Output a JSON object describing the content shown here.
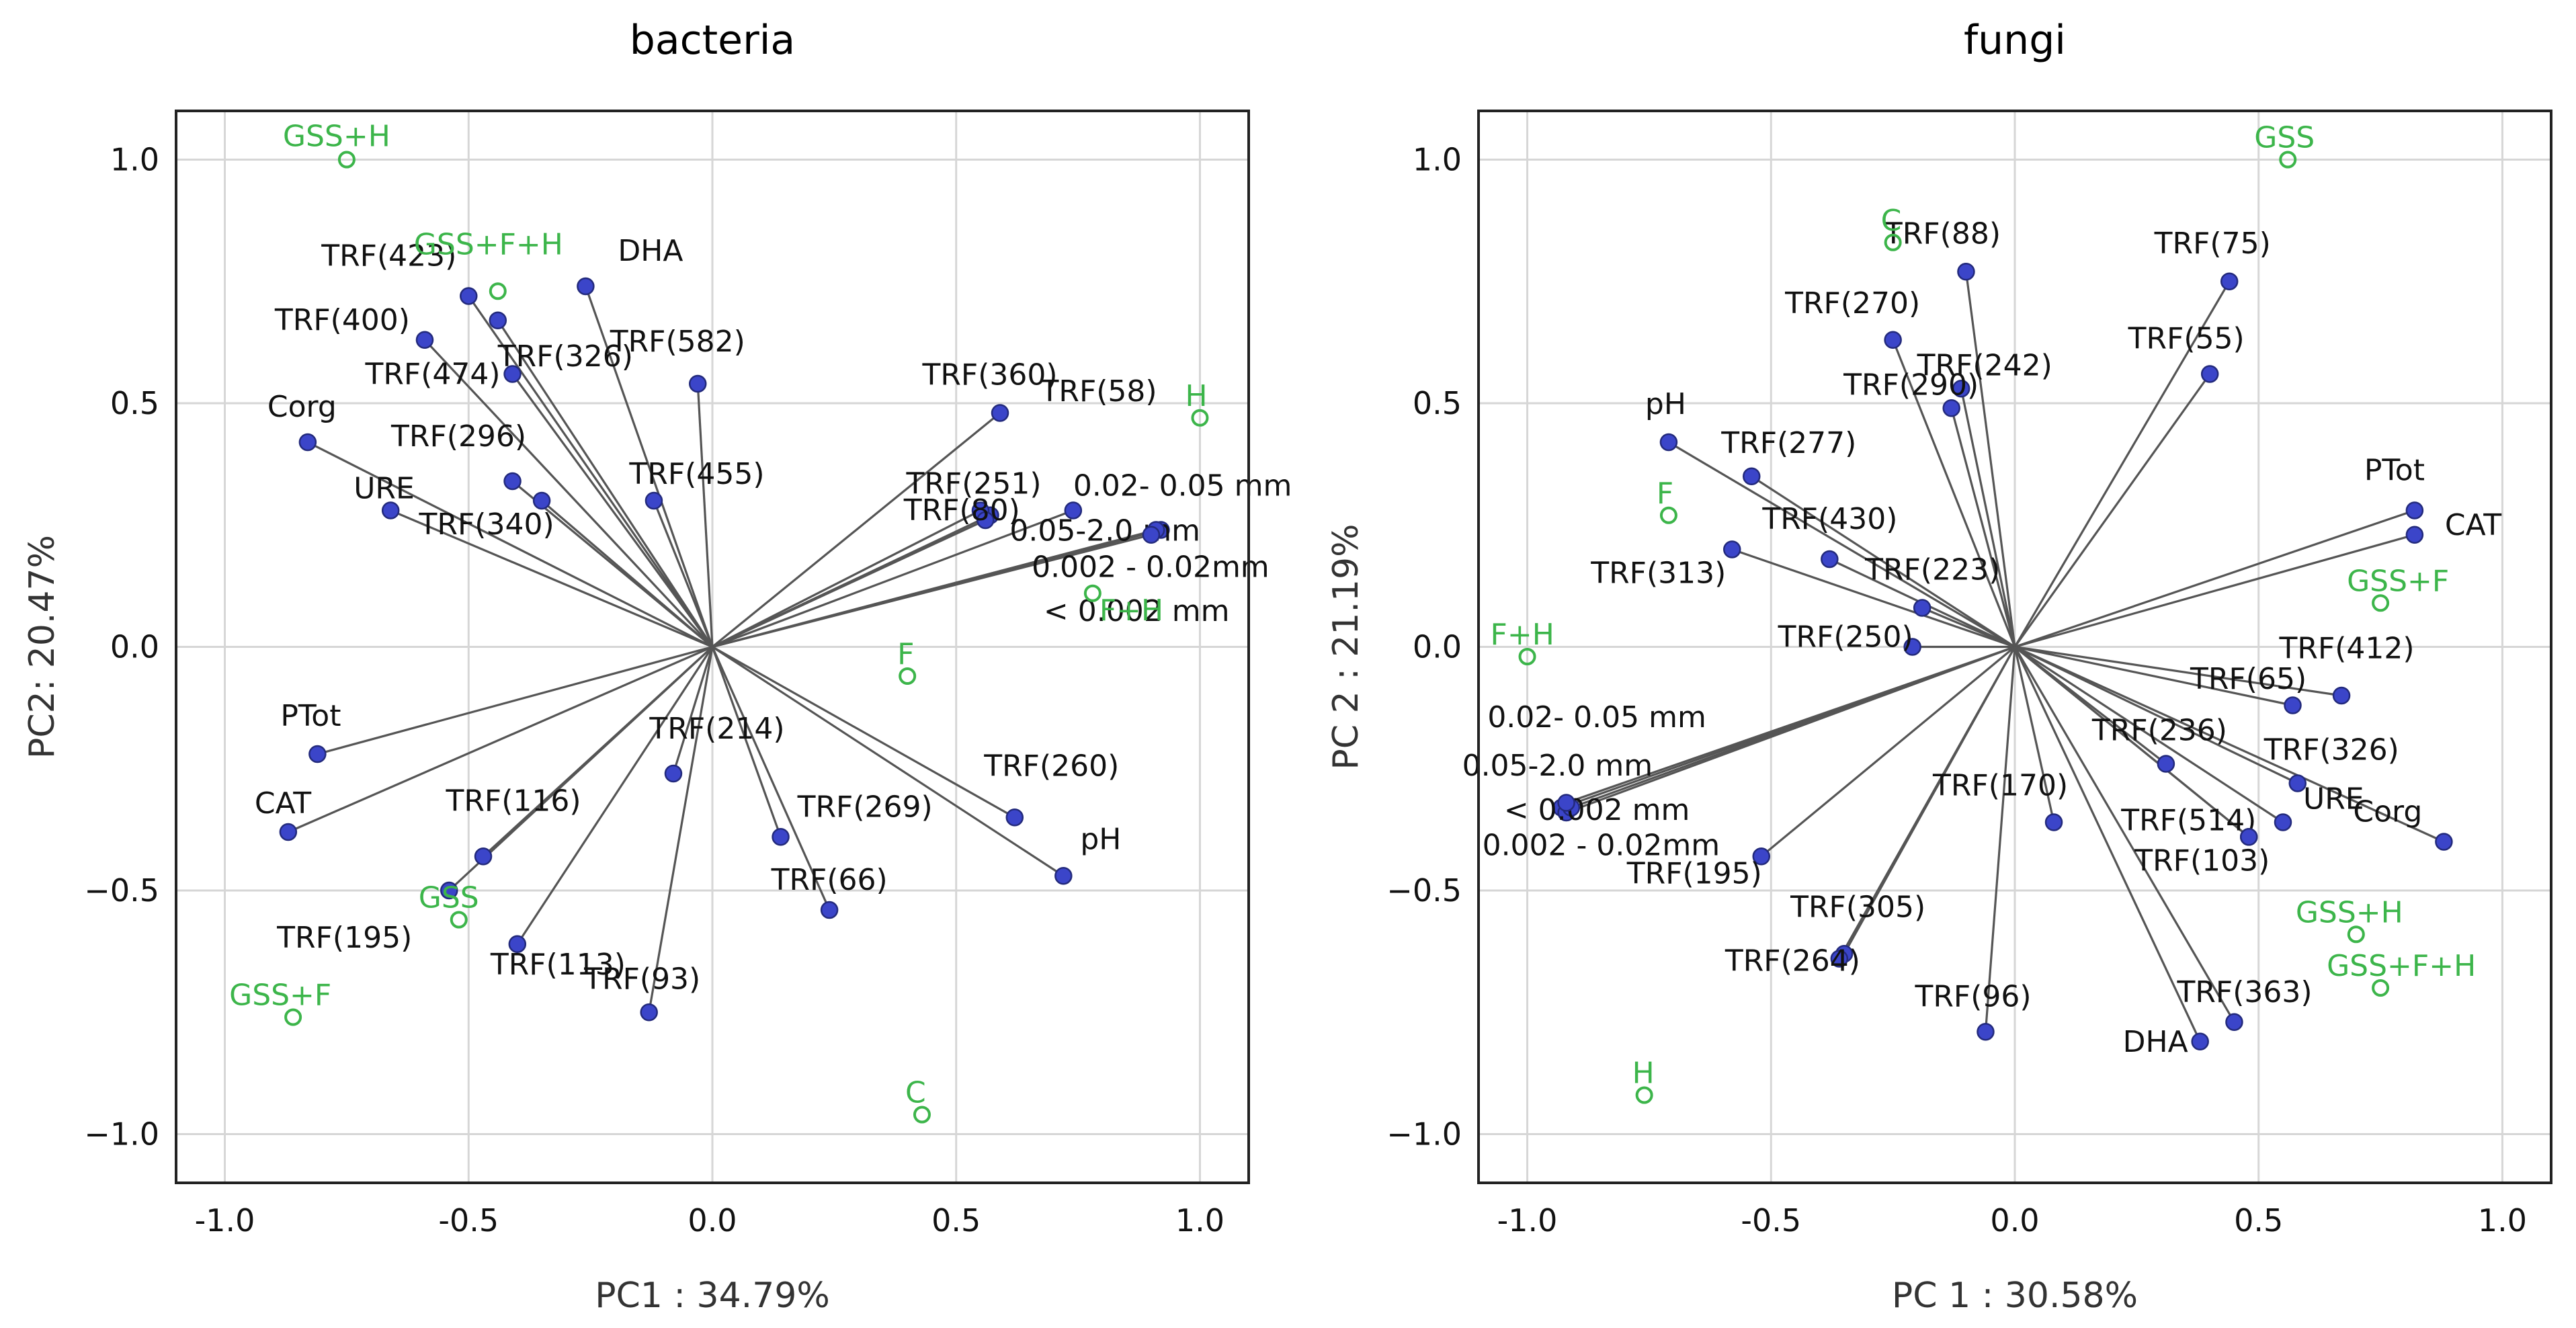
{
  "chart_data": [
    {
      "type": "scatter",
      "subtype": "pca-biplot",
      "title": "bacteria",
      "xlabel": "PC1 : 34.79%",
      "ylabel": "PC2: 20.47%",
      "xlim": [
        -1.1,
        1.1
      ],
      "ylim": [
        -1.1,
        1.1
      ],
      "xticks": [
        -1.0,
        -0.5,
        0.0,
        0.5,
        1.0
      ],
      "xtick_labels": [
        "-1.0",
        "-0.5",
        "0.0",
        "0.5",
        "1.0"
      ],
      "yticks": [
        1.0,
        0.5,
        0.0,
        -0.5,
        -1.0
      ],
      "ytick_labels": [
        "1.0",
        "0.5",
        "0.0",
        "−0.5",
        "−1.0"
      ],
      "grid": true,
      "variables": [
        {
          "label": "TRF(423)",
          "x": -0.5,
          "y": 0.72
        },
        {
          "label": "DHA",
          "x": -0.26,
          "y": 0.74
        },
        {
          "label": "TRF(400)",
          "x": -0.59,
          "y": 0.63
        },
        {
          "label": "TRF(326)",
          "x": -0.44,
          "y": 0.67
        },
        {
          "label": "TRF(474)",
          "x": -0.41,
          "y": 0.56
        },
        {
          "label": "TRF(582)",
          "x": -0.03,
          "y": 0.54
        },
        {
          "label": "TRF(360)",
          "x": 0.59,
          "y": 0.48
        },
        {
          "label": "TRF(58)",
          "x": 0.57,
          "y": 0.27
        },
        {
          "label": "Corg",
          "x": -0.83,
          "y": 0.42
        },
        {
          "label": "TRF(296)",
          "x": -0.41,
          "y": 0.34
        },
        {
          "label": "TRF(455)",
          "x": -0.12,
          "y": 0.3
        },
        {
          "label": "TRF(251)",
          "x": 0.55,
          "y": 0.28
        },
        {
          "label": "TRF(80)",
          "x": 0.56,
          "y": 0.26
        },
        {
          "label": "0.02- 0.05 mm",
          "x": 0.74,
          "y": 0.28
        },
        {
          "label": "0.05-2.0 mm",
          "x": 0.92,
          "y": 0.24
        },
        {
          "label": "0.002 - 0.02mm",
          "x": 0.91,
          "y": 0.24
        },
        {
          "label": "< 0.002 mm",
          "x": 0.9,
          "y": 0.23
        },
        {
          "label": "URE",
          "x": -0.66,
          "y": 0.28
        },
        {
          "label": "TRF(340)",
          "x": -0.35,
          "y": 0.3
        },
        {
          "label": "PTot",
          "x": -0.81,
          "y": -0.22
        },
        {
          "label": "CAT",
          "x": -0.87,
          "y": -0.38
        },
        {
          "label": "TRF(214)",
          "x": -0.08,
          "y": -0.26
        },
        {
          "label": "TRF(260)",
          "x": 0.62,
          "y": -0.35
        },
        {
          "label": "pH",
          "x": 0.72,
          "y": -0.47
        },
        {
          "label": "TRF(116)",
          "x": -0.47,
          "y": -0.43
        },
        {
          "label": "TRF(269)",
          "x": 0.14,
          "y": -0.39
        },
        {
          "label": "TRF(195)",
          "x": -0.54,
          "y": -0.5
        },
        {
          "label": "TRF(66)",
          "x": 0.24,
          "y": -0.54
        },
        {
          "label": "TRF(113)",
          "x": -0.4,
          "y": -0.61
        },
        {
          "label": "TRF(93)",
          "x": -0.13,
          "y": -0.75
        }
      ],
      "samples": [
        {
          "label": "GSS+H",
          "x": -0.75,
          "y": 1.0
        },
        {
          "label": "GSS+F+H",
          "x": -0.44,
          "y": 0.73
        },
        {
          "label": "H",
          "x": 1.0,
          "y": 0.47
        },
        {
          "label": "F+H",
          "x": 0.78,
          "y": 0.11
        },
        {
          "label": "F",
          "x": 0.4,
          "y": -0.06
        },
        {
          "label": "GSS",
          "x": -0.52,
          "y": -0.56
        },
        {
          "label": "GSS+F",
          "x": -0.86,
          "y": -0.76
        },
        {
          "label": "C",
          "x": 0.43,
          "y": -0.96
        }
      ]
    },
    {
      "type": "scatter",
      "subtype": "pca-biplot",
      "title": "fungi",
      "xlabel": "PC 1 : 30.58%",
      "ylabel": "PC 2 : 21.19%",
      "xlim": [
        -1.1,
        1.1
      ],
      "ylim": [
        -1.1,
        1.1
      ],
      "xticks": [
        -1.0,
        -0.5,
        0.0,
        0.5,
        1.0
      ],
      "xtick_labels": [
        "-1.0",
        "-0.5",
        "0.0",
        "0.5",
        "1.0"
      ],
      "yticks": [
        1.0,
        0.5,
        0.0,
        -0.5,
        -1.0
      ],
      "ytick_labels": [
        "1.0",
        "0.5",
        "0.0",
        "−0.5",
        "−1.0"
      ],
      "grid": true,
      "variables": [
        {
          "label": "TRF(88)",
          "x": -0.1,
          "y": 0.77
        },
        {
          "label": "TRF(75)",
          "x": 0.44,
          "y": 0.75
        },
        {
          "label": "TRF(270)",
          "x": -0.25,
          "y": 0.63
        },
        {
          "label": "TRF(242)",
          "x": -0.11,
          "y": 0.53
        },
        {
          "label": "TRF(55)",
          "x": 0.4,
          "y": 0.56
        },
        {
          "label": "TRF(290)",
          "x": -0.13,
          "y": 0.49
        },
        {
          "label": "pH",
          "x": -0.71,
          "y": 0.42
        },
        {
          "label": "TRF(277)",
          "x": -0.54,
          "y": 0.35
        },
        {
          "label": "PTot",
          "x": 0.82,
          "y": 0.28
        },
        {
          "label": "CAT",
          "x": 0.82,
          "y": 0.23
        },
        {
          "label": "TRF(430)",
          "x": -0.38,
          "y": 0.18
        },
        {
          "label": "TRF(313)",
          "x": -0.58,
          "y": 0.2
        },
        {
          "label": "TRF(223)",
          "x": -0.19,
          "y": 0.08
        },
        {
          "label": "TRF(250)",
          "x": -0.21,
          "y": 0.0
        },
        {
          "label": "TRF(412)",
          "x": 0.57,
          "y": -0.12
        },
        {
          "label": "TRF(65)",
          "x": 0.67,
          "y": -0.1
        },
        {
          "label": "TRF(236)",
          "x": 0.31,
          "y": -0.24
        },
        {
          "label": "TRF(326)",
          "x": 0.58,
          "y": -0.28
        },
        {
          "label": "TRF(514)",
          "x": 0.48,
          "y": -0.39
        },
        {
          "label": "URE",
          "x": 0.55,
          "y": -0.36
        },
        {
          "label": "Corg",
          "x": 0.88,
          "y": -0.4
        },
        {
          "label": "TRF(170)",
          "x": 0.08,
          "y": -0.36
        },
        {
          "label": "TRF(103)",
          "x": 0.48,
          "y": -0.39
        },
        {
          "label": "0.02- 0.05 mm",
          "x": -0.93,
          "y": -0.33
        },
        {
          "label": "0.05-2.0 mm",
          "x": -0.92,
          "y": -0.34
        },
        {
          "label": "< 0.002 mm",
          "x": -0.91,
          "y": -0.33
        },
        {
          "label": "0.002 - 0.02mm",
          "x": -0.92,
          "y": -0.32
        },
        {
          "label": "TRF(195)",
          "x": -0.52,
          "y": -0.43
        },
        {
          "label": "TRF(305)",
          "x": -0.35,
          "y": -0.63
        },
        {
          "label": "TRF(264)",
          "x": -0.36,
          "y": -0.64
        },
        {
          "label": "TRF(96)",
          "x": -0.06,
          "y": -0.79
        },
        {
          "label": "TRF(363)",
          "x": 0.45,
          "y": -0.77
        },
        {
          "label": "DHA",
          "x": 0.38,
          "y": -0.81
        }
      ],
      "samples": [
        {
          "label": "GSS",
          "x": 0.56,
          "y": 1.0
        },
        {
          "label": "C",
          "x": -0.25,
          "y": 0.83
        },
        {
          "label": "F",
          "x": -0.71,
          "y": 0.27
        },
        {
          "label": "GSS+F",
          "x": 0.75,
          "y": 0.09
        },
        {
          "label": "F+H",
          "x": -1.0,
          "y": -0.02
        },
        {
          "label": "GSS+H",
          "x": 0.7,
          "y": -0.59
        },
        {
          "label": "GSS+F+H",
          "x": 0.75,
          "y": -0.7
        },
        {
          "label": "H",
          "x": -0.76,
          "y": -0.92
        }
      ]
    }
  ]
}
